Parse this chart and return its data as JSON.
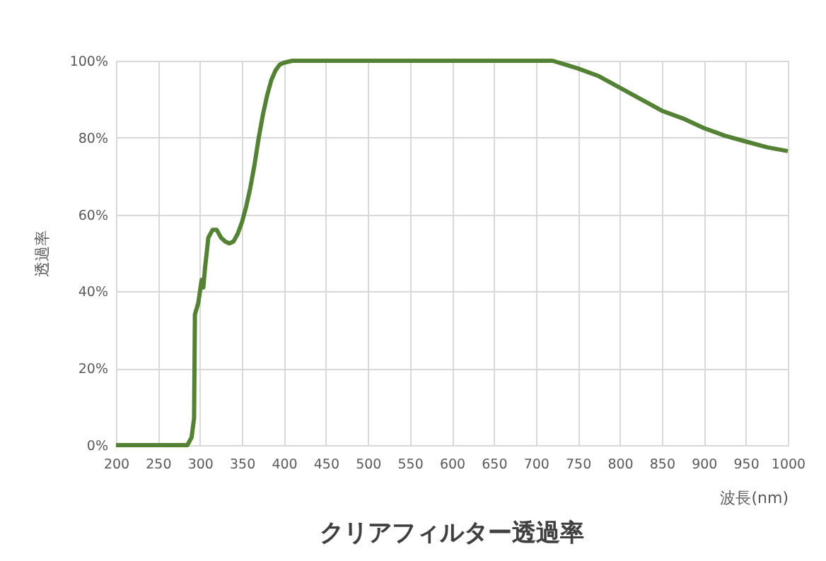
{
  "chart_data": {
    "type": "line",
    "title": "クリアフィルター透過率",
    "xlabel": "波長(nm)",
    "ylabel": "透過率",
    "xlim": [
      200,
      1000
    ],
    "xticks": [
      200,
      250,
      300,
      350,
      400,
      450,
      500,
      550,
      600,
      650,
      700,
      750,
      800,
      850,
      900,
      950,
      1000
    ],
    "ylim": [
      0,
      100
    ],
    "yticks": [
      {
        "value": 0,
        "label": "0%"
      },
      {
        "value": 20,
        "label": "20%"
      },
      {
        "value": 40,
        "label": "40%"
      },
      {
        "value": 60,
        "label": "60%"
      },
      {
        "value": 80,
        "label": "80%"
      },
      {
        "value": 100,
        "label": "100%"
      }
    ],
    "grid": true,
    "marker": "none",
    "line_style": "solid",
    "series": [
      {
        "color": "#548235",
        "x": [
          200,
          285,
          290,
          293,
          294,
          298,
          302,
          304,
          306,
          310,
          315,
          320,
          325,
          330,
          335,
          340,
          345,
          350,
          355,
          360,
          365,
          370,
          375,
          380,
          385,
          390,
          395,
          400,
          410,
          720,
          735,
          750,
          775,
          800,
          825,
          850,
          875,
          900,
          925,
          950,
          975,
          1000
        ],
        "values": [
          0,
          0,
          2,
          7,
          34,
          37,
          43,
          41,
          46,
          54,
          56,
          56,
          54,
          53,
          52.5,
          53,
          55,
          58,
          62,
          67,
          73,
          80,
          86,
          91,
          95,
          97.5,
          99,
          99.5,
          100,
          100,
          99,
          98,
          96,
          93,
          90,
          87,
          85,
          82.5,
          80.5,
          79,
          77.5,
          76.5
        ]
      }
    ]
  }
}
